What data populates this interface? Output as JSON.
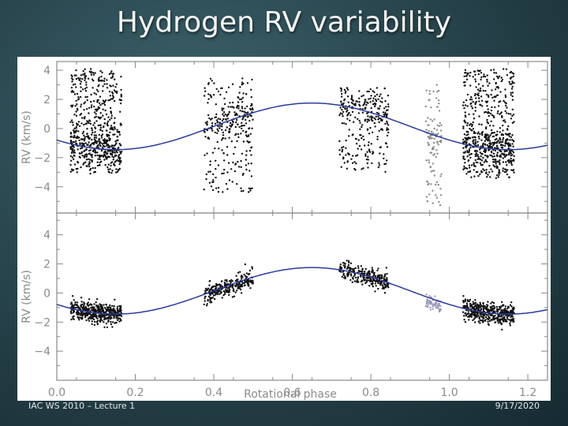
{
  "slide": {
    "title": "Hydrogen RV variability",
    "footer_left": "IAC WS 2010 – Lecture 1",
    "footer_right": "9/17/2020"
  },
  "chart_data": [
    {
      "type": "scatter",
      "title": "",
      "xlabel": "",
      "ylabel": "RV (km/s)",
      "xlim": [
        0.0,
        1.25
      ],
      "ylim": [
        -5.8,
        4.6
      ],
      "yticks": [
        4,
        2,
        0,
        -2,
        -4
      ],
      "ytick_labels": [
        "4",
        "2",
        "0",
        "−2",
        "−4"
      ],
      "xticks": [
        0.0,
        0.2,
        0.4,
        0.6,
        0.8,
        1.0,
        1.2
      ],
      "grid": false,
      "model_curve": {
        "mean": 0.15,
        "amplitude": 1.6,
        "peak_phase": 0.65,
        "period": 1.0,
        "color": "#2b3a9c"
      },
      "point_groups": [
        {
          "x_range": [
            0.035,
            0.165
          ],
          "y_range": [
            -3.1,
            4.1
          ],
          "count": 650,
          "color": "#111111"
        },
        {
          "x_range": [
            0.375,
            0.5
          ],
          "y_range": [
            -4.4,
            3.5
          ],
          "count": 300,
          "color": "#111111"
        },
        {
          "x_range": [
            0.72,
            0.845
          ],
          "y_range": [
            -3.0,
            2.8
          ],
          "count": 280,
          "color": "#111111"
        },
        {
          "x_range": [
            0.94,
            0.98
          ],
          "y_range": [
            -5.3,
            3.0
          ],
          "count": 110,
          "color": "#8c8c8c"
        },
        {
          "x_range": [
            1.035,
            1.165
          ],
          "y_range": [
            -3.4,
            4.1
          ],
          "count": 650,
          "color": "#111111"
        }
      ]
    },
    {
      "type": "scatter",
      "title": "",
      "xlabel": "Rotational phase",
      "ylabel": "RV (km/s)",
      "xlim": [
        0.0,
        1.25
      ],
      "ylim": [
        -6.0,
        5.5
      ],
      "yticks": [
        4,
        2,
        0,
        -2,
        -4
      ],
      "ytick_labels": [
        "4",
        "2",
        "0",
        "−2",
        "−4"
      ],
      "xticks": [
        0.0,
        0.2,
        0.4,
        0.6,
        0.8,
        1.0,
        1.2
      ],
      "xtick_labels": [
        "0.0",
        "0.2",
        "0.4",
        "0.6",
        "0.8",
        "1.0",
        "1.2"
      ],
      "grid": false,
      "model_curve": {
        "mean": 0.15,
        "amplitude": 1.6,
        "peak_phase": 0.65,
        "period": 1.0,
        "color": "#2b3a9c"
      },
      "point_groups": [
        {
          "x_range": [
            0.035,
            0.165
          ],
          "y_offset": 0.0,
          "scatter": 0.35,
          "count": 420,
          "color": "#111111"
        },
        {
          "x_range": [
            0.375,
            0.5
          ],
          "y_offset": -0.1,
          "scatter": 0.3,
          "count": 260,
          "color": "#111111"
        },
        {
          "x_range": [
            0.72,
            0.845
          ],
          "y_offset": 0.0,
          "scatter": 0.3,
          "count": 260,
          "color": "#111111"
        },
        {
          "x_range": [
            0.94,
            0.98
          ],
          "y_offset": -0.3,
          "scatter": 0.25,
          "count": 60,
          "color": "#9999bb"
        },
        {
          "x_range": [
            1.035,
            1.165
          ],
          "y_offset": 0.0,
          "scatter": 0.35,
          "count": 420,
          "color": "#111111"
        }
      ]
    }
  ]
}
